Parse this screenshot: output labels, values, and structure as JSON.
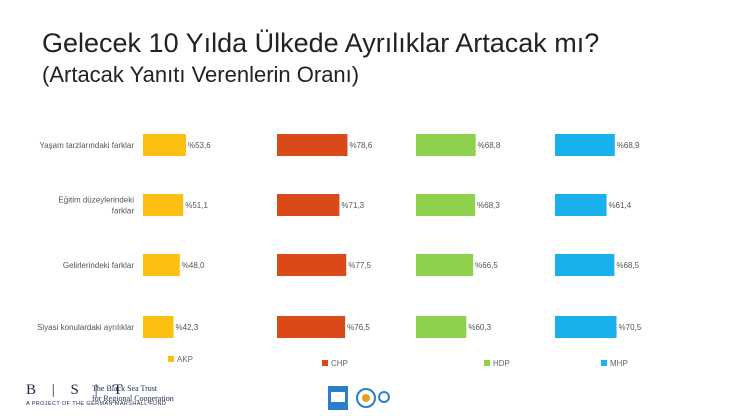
{
  "title": "Gelecek 10 Yılda Ülkede Ayrılıklar Artacak mı?",
  "subtitle": "(Artacak Yanıtı Verenlerin Oranı)",
  "chart_data": {
    "type": "bar",
    "orientation": "horizontal",
    "layout": "small-multiples",
    "categories": [
      "Yaşam tarzlarındaki farklar",
      "Eğitim düzeylerindeki farklar",
      "Gelirlerindeki farklar",
      "Siyasi konulardaki ayrılıklar"
    ],
    "series": [
      {
        "name": "AKP",
        "color": "#fcbf12",
        "values": [
          53.6,
          51.1,
          48.0,
          42.3
        ],
        "labels": [
          "%53,6",
          "%51,1",
          "%48,0",
          "%42,3"
        ]
      },
      {
        "name": "CHP",
        "color": "#d9491a",
        "values": [
          78.6,
          71.3,
          77.5,
          76.5
        ],
        "labels": [
          "%78,6",
          "%71,3",
          "%77,5",
          "%76,5"
        ]
      },
      {
        "name": "HDP",
        "color": "#8dd14c",
        "values": [
          68.8,
          68.3,
          66.5,
          60.3
        ],
        "labels": [
          "%68,8",
          "%68,3",
          "%66,5",
          "%60,3"
        ]
      },
      {
        "name": "MHP",
        "color": "#18b0ed",
        "values": [
          68.9,
          61.4,
          68.5,
          70.5
        ],
        "labels": [
          "%68,9",
          "%61,4",
          "%68,5",
          "%70,5"
        ]
      }
    ],
    "legend": "bottom",
    "grid": false
  },
  "footer": {
    "logo": "B | S | T",
    "org_line1": "The Black Sea Trust",
    "org_line2": "for Regional Cooperation",
    "tagline": "A PROJECT OF THE GERMAN MARSHALL FUND"
  }
}
